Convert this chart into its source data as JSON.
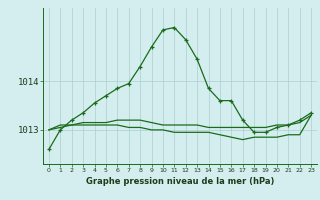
{
  "hours": [
    0,
    1,
    2,
    3,
    4,
    5,
    6,
    7,
    8,
    9,
    10,
    11,
    12,
    13,
    14,
    15,
    16,
    17,
    18,
    19,
    20,
    21,
    22,
    23
  ],
  "line1": [
    1012.6,
    1013.0,
    1013.2,
    1013.35,
    1013.55,
    1013.7,
    1013.85,
    1013.95,
    1014.3,
    1014.7,
    1015.05,
    1015.1,
    1014.85,
    1014.45,
    1013.85,
    1013.6,
    1013.6,
    1013.2,
    1012.95,
    1012.95,
    1013.05,
    1013.1,
    1013.2,
    1013.35
  ],
  "line2": [
    1013.0,
    1013.05,
    1013.1,
    1013.1,
    1013.1,
    1013.1,
    1013.1,
    1013.05,
    1013.05,
    1013.0,
    1013.0,
    1012.95,
    1012.95,
    1012.95,
    1012.95,
    1012.9,
    1012.85,
    1012.8,
    1012.85,
    1012.85,
    1012.85,
    1012.9,
    1012.9,
    1013.3
  ],
  "line3": [
    1013.0,
    1013.1,
    1013.1,
    1013.15,
    1013.15,
    1013.15,
    1013.2,
    1013.2,
    1013.2,
    1013.15,
    1013.1,
    1013.1,
    1013.1,
    1013.1,
    1013.05,
    1013.05,
    1013.05,
    1013.05,
    1013.05,
    1013.05,
    1013.1,
    1013.1,
    1013.15,
    1013.3
  ],
  "bg_color": "#d4eef0",
  "line_color": "#1a6b1a",
  "grid_color": "#aacfcf",
  "xlabel_label": "Graphe pression niveau de la mer (hPa)",
  "yticks": [
    1013,
    1014
  ],
  "ylim": [
    1012.3,
    1015.5
  ],
  "xlim": [
    -0.5,
    23.5
  ],
  "font_color": "#1a3d1a"
}
